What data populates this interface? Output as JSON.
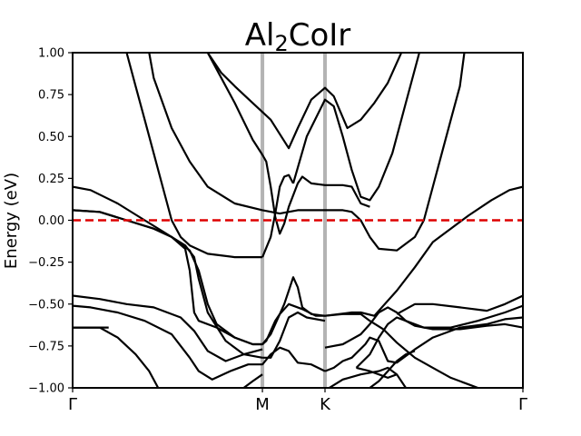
{
  "chart_data": {
    "type": "line",
    "title": {
      "base1": "Al",
      "sub": "2",
      "base2": "CoIr"
    },
    "xlabel": "",
    "ylabel": "Energy (eV)",
    "ylim": [
      -1.0,
      1.0
    ],
    "y_ticks": [
      1.0,
      0.75,
      0.5,
      0.25,
      0.0,
      -0.25,
      -0.5,
      -0.75,
      -1.0
    ],
    "y_tick_labels": [
      "1.00",
      "0.75",
      "0.50",
      "0.25",
      "0.00",
      "−0.25",
      "−0.50",
      "−0.75",
      "−1.00"
    ],
    "xlim": [
      0,
      1
    ],
    "kpath": [
      {
        "label": "Γ",
        "x": 0.0
      },
      {
        "label": "M",
        "x": 0.4215
      },
      {
        "label": "K",
        "x": 0.5605
      },
      {
        "label": "Γ",
        "x": 1.0
      }
    ],
    "fermi_level": 0.0,
    "colors": {
      "bands": "#000000",
      "fermi": "#dd0000",
      "kpath_lines": "#b3b3b3"
    },
    "series": [
      {
        "points": [
          [
            0.0,
            0.2
          ],
          [
            0.04,
            0.18
          ],
          [
            0.1,
            0.1
          ],
          [
            0.16,
            0.0
          ],
          [
            0.22,
            -0.1
          ],
          [
            0.26,
            -0.18
          ],
          [
            0.28,
            -0.3
          ],
          [
            0.3,
            -0.5
          ],
          [
            0.32,
            -0.62
          ],
          [
            0.36,
            -0.7
          ],
          [
            0.4,
            -0.74
          ],
          [
            0.4215,
            -0.74
          ],
          [
            0.44,
            -0.68
          ],
          [
            0.46,
            -0.56
          ],
          [
            0.48,
            -0.5
          ],
          [
            0.51,
            -0.53
          ],
          [
            0.54,
            -0.57
          ],
          [
            0.5605,
            -0.57
          ],
          [
            0.62,
            -0.55
          ],
          [
            0.64,
            -0.55
          ],
          [
            0.67,
            -0.57
          ],
          [
            0.72,
            -0.42
          ],
          [
            0.76,
            -0.28
          ],
          [
            0.8,
            -0.13
          ],
          [
            0.84,
            -0.05
          ],
          [
            0.88,
            0.03
          ],
          [
            0.93,
            0.12
          ],
          [
            0.97,
            0.18
          ],
          [
            1.0,
            0.2
          ]
        ]
      },
      {
        "points": [
          [
            0.0,
            0.06
          ],
          [
            0.06,
            0.05
          ],
          [
            0.12,
            0.0
          ],
          [
            0.18,
            -0.05
          ],
          [
            0.22,
            -0.1
          ],
          [
            0.25,
            -0.17
          ],
          [
            0.26,
            -0.3
          ],
          [
            0.27,
            -0.55
          ],
          [
            0.28,
            -0.6
          ],
          [
            0.32,
            -0.64
          ],
          [
            0.36,
            -0.7
          ],
          [
            0.4,
            -0.74
          ],
          [
            0.4215,
            -0.74
          ]
        ]
      },
      {
        "points": [
          [
            0.4215,
            -0.74
          ],
          [
            0.43,
            -0.72
          ],
          [
            0.44,
            -0.66
          ],
          [
            0.45,
            -0.6
          ],
          [
            0.46,
            -0.56
          ],
          [
            0.47,
            -0.5
          ],
          [
            0.48,
            -0.42
          ],
          [
            0.49,
            -0.34
          ],
          [
            0.5,
            -0.4
          ],
          [
            0.51,
            -0.52
          ],
          [
            0.53,
            -0.56
          ],
          [
            0.5605,
            -0.57
          ]
        ]
      },
      {
        "points": [
          [
            0.0,
            0.06
          ],
          [
            0.06,
            0.05
          ],
          [
            0.12,
            0.0
          ],
          [
            0.18,
            -0.05
          ],
          [
            0.22,
            -0.1
          ],
          [
            0.25,
            -0.15
          ],
          [
            0.27,
            -0.22
          ],
          [
            0.28,
            -0.35
          ],
          [
            0.3,
            -0.55
          ],
          [
            0.34,
            -0.72
          ],
          [
            0.38,
            -0.8
          ],
          [
            0.4215,
            -0.82
          ]
        ]
      },
      {
        "points": [
          [
            0.4215,
            -0.82
          ],
          [
            0.44,
            -0.82
          ],
          [
            0.46,
            -0.72
          ],
          [
            0.48,
            -0.58
          ],
          [
            0.5,
            -0.55
          ],
          [
            0.52,
            -0.58
          ],
          [
            0.5605,
            -0.6
          ]
        ]
      },
      {
        "points": [
          [
            0.0,
            -0.45
          ],
          [
            0.06,
            -0.47
          ],
          [
            0.12,
            -0.5
          ],
          [
            0.18,
            -0.52
          ],
          [
            0.24,
            -0.58
          ],
          [
            0.27,
            -0.66
          ],
          [
            0.3,
            -0.78
          ],
          [
            0.34,
            -0.84
          ],
          [
            0.38,
            -0.8
          ],
          [
            0.4215,
            -0.77
          ]
        ]
      },
      {
        "points": [
          [
            0.0,
            -0.51
          ],
          [
            0.04,
            -0.52
          ],
          [
            0.1,
            -0.55
          ],
          [
            0.16,
            -0.6
          ],
          [
            0.22,
            -0.68
          ],
          [
            0.26,
            -0.82
          ],
          [
            0.28,
            -0.9
          ],
          [
            0.31,
            -0.95
          ],
          [
            0.35,
            -0.9
          ],
          [
            0.39,
            -0.86
          ],
          [
            0.4215,
            -0.86
          ],
          [
            0.44,
            -0.8
          ],
          [
            0.46,
            -0.76
          ],
          [
            0.48,
            -0.78
          ],
          [
            0.5,
            -0.85
          ],
          [
            0.53,
            -0.86
          ],
          [
            0.5605,
            -0.9
          ]
        ]
      },
      {
        "points": [
          [
            0.0,
            -0.64
          ],
          [
            0.06,
            -0.64
          ],
          [
            0.1,
            -0.7
          ],
          [
            0.14,
            -0.8
          ],
          [
            0.17,
            -0.9
          ],
          [
            0.19,
            -1.0
          ]
        ]
      },
      {
        "points": [
          [
            0.4215,
            0.39
          ],
          [
            0.43,
            0.35
          ],
          [
            0.44,
            0.2
          ],
          [
            0.45,
            0.02
          ],
          [
            0.46,
            -0.08
          ],
          [
            0.47,
            -0.02
          ],
          [
            0.48,
            0.08
          ],
          [
            0.5,
            0.22
          ],
          [
            0.51,
            0.26
          ],
          [
            0.53,
            0.22
          ],
          [
            0.5605,
            0.21
          ],
          [
            0.6,
            0.21
          ],
          [
            0.62,
            0.2
          ],
          [
            0.64,
            0.1
          ],
          [
            0.66,
            0.08
          ]
        ]
      },
      {
        "points": [
          [
            0.4215,
            -0.22
          ],
          [
            0.4,
            -0.22
          ],
          [
            0.36,
            -0.22
          ],
          [
            0.3,
            -0.2
          ],
          [
            0.26,
            -0.15
          ],
          [
            0.24,
            -0.1
          ],
          [
            0.22,
            0.0
          ],
          [
            0.2,
            0.2
          ],
          [
            0.18,
            0.4
          ],
          [
            0.16,
            0.6
          ],
          [
            0.14,
            0.8
          ],
          [
            0.12,
            1.0
          ]
        ]
      },
      {
        "points": [
          [
            0.4215,
            -0.22
          ],
          [
            0.44,
            -0.1
          ],
          [
            0.45,
            0.04
          ],
          [
            0.46,
            0.2
          ],
          [
            0.47,
            0.26
          ],
          [
            0.48,
            0.27
          ],
          [
            0.49,
            0.22
          ]
        ]
      },
      {
        "points": [
          [
            0.17,
            1.0
          ],
          [
            0.18,
            0.85
          ],
          [
            0.2,
            0.7
          ],
          [
            0.22,
            0.55
          ],
          [
            0.26,
            0.35
          ],
          [
            0.3,
            0.2
          ],
          [
            0.36,
            0.1
          ],
          [
            0.4215,
            0.06
          ],
          [
            0.46,
            0.04
          ],
          [
            0.5,
            0.06
          ],
          [
            0.5605,
            0.06
          ],
          [
            0.6,
            0.06
          ],
          [
            0.62,
            0.05
          ],
          [
            0.64,
            0.0
          ],
          [
            0.66,
            -0.1
          ],
          [
            0.68,
            -0.17
          ],
          [
            0.72,
            -0.18
          ],
          [
            0.76,
            -0.1
          ],
          [
            0.78,
            0.0
          ],
          [
            0.8,
            0.2
          ],
          [
            0.82,
            0.4
          ],
          [
            0.84,
            0.6
          ],
          [
            0.86,
            0.8
          ],
          [
            0.87,
            1.0
          ]
        ]
      },
      {
        "points": [
          [
            0.3,
            1.0
          ],
          [
            0.33,
            0.85
          ],
          [
            0.36,
            0.7
          ],
          [
            0.4,
            0.48
          ],
          [
            0.4215,
            0.39
          ]
        ]
      },
      {
        "points": [
          [
            0.3,
            1.0
          ],
          [
            0.33,
            0.88
          ],
          [
            0.36,
            0.8
          ],
          [
            0.4,
            0.7
          ],
          [
            0.44,
            0.6
          ],
          [
            0.48,
            0.43
          ],
          [
            0.5,
            0.55
          ],
          [
            0.53,
            0.72
          ],
          [
            0.5605,
            0.79
          ],
          [
            0.58,
            0.74
          ],
          [
            0.61,
            0.55
          ],
          [
            0.64,
            0.6
          ],
          [
            0.67,
            0.7
          ],
          [
            0.7,
            0.82
          ],
          [
            0.73,
            1.0
          ]
        ]
      },
      {
        "points": [
          [
            0.49,
            0.22
          ],
          [
            0.52,
            0.5
          ],
          [
            0.5605,
            0.72
          ],
          [
            0.58,
            0.68
          ],
          [
            0.6,
            0.5
          ],
          [
            0.62,
            0.3
          ],
          [
            0.64,
            0.14
          ],
          [
            0.66,
            0.12
          ],
          [
            0.68,
            0.2
          ],
          [
            0.71,
            0.4
          ],
          [
            0.74,
            0.7
          ],
          [
            0.77,
            1.0
          ]
        ]
      },
      {
        "points": [
          [
            0.5605,
            -0.9
          ],
          [
            0.58,
            -0.88
          ],
          [
            0.6,
            -0.84
          ],
          [
            0.62,
            -0.82
          ],
          [
            0.65,
            -0.74
          ],
          [
            0.66,
            -0.7
          ],
          [
            0.68,
            -0.72
          ],
          [
            0.7,
            -0.84
          ],
          [
            0.72,
            -0.85
          ],
          [
            0.76,
            -0.77
          ],
          [
            0.8,
            -0.7
          ],
          [
            0.86,
            -0.64
          ],
          [
            0.92,
            -0.62
          ],
          [
            0.96,
            -0.59
          ],
          [
            1.0,
            -0.58
          ]
        ]
      },
      {
        "points": [
          [
            0.5605,
            -0.76
          ],
          [
            0.6,
            -0.74
          ],
          [
            0.64,
            -0.68
          ],
          [
            0.66,
            -0.62
          ],
          [
            0.68,
            -0.55
          ],
          [
            0.7,
            -0.52
          ],
          [
            0.72,
            -0.55
          ],
          [
            0.74,
            -0.6
          ],
          [
            0.76,
            -0.63
          ],
          [
            0.8,
            -0.65
          ],
          [
            0.86,
            -0.65
          ],
          [
            0.92,
            -0.63
          ],
          [
            0.96,
            -0.62
          ],
          [
            1.0,
            -0.64
          ]
        ]
      },
      {
        "points": [
          [
            0.5605,
            -0.57
          ],
          [
            0.6,
            -0.56
          ],
          [
            0.64,
            -0.56
          ],
          [
            0.66,
            -0.6
          ],
          [
            0.69,
            -0.65
          ],
          [
            0.72,
            -0.73
          ],
          [
            0.76,
            -0.82
          ],
          [
            0.8,
            -0.88
          ],
          [
            0.84,
            -0.94
          ],
          [
            0.88,
            -0.98
          ],
          [
            0.9,
            -1.0
          ]
        ]
      },
      {
        "points": [
          [
            0.57,
            -1.0
          ],
          [
            0.6,
            -0.95
          ],
          [
            0.64,
            -0.92
          ],
          [
            0.68,
            -0.9
          ],
          [
            0.7,
            -0.88
          ],
          [
            0.72,
            -0.92
          ],
          [
            0.74,
            -1.0
          ]
        ]
      },
      {
        "points": [
          [
            0.66,
            -1.0
          ],
          [
            0.68,
            -0.96
          ],
          [
            0.7,
            -0.9
          ],
          [
            0.72,
            -0.84
          ],
          [
            0.74,
            -0.8
          ],
          [
            0.76,
            -0.78
          ]
        ]
      },
      {
        "points": [
          [
            0.63,
            -0.88
          ],
          [
            0.66,
            -0.8
          ],
          [
            0.68,
            -0.7
          ],
          [
            0.7,
            -0.62
          ],
          [
            0.72,
            -0.58
          ],
          [
            0.74,
            -0.6
          ],
          [
            0.78,
            -0.64
          ],
          [
            0.84,
            -0.64
          ],
          [
            0.9,
            -0.6
          ],
          [
            0.96,
            -0.55
          ],
          [
            1.0,
            -0.51
          ]
        ]
      },
      {
        "points": [
          [
            0.63,
            -0.88
          ],
          [
            0.66,
            -0.9
          ],
          [
            0.68,
            -0.92
          ],
          [
            0.7,
            -0.94
          ],
          [
            0.72,
            -0.92
          ]
        ]
      },
      {
        "points": [
          [
            0.72,
            -0.56
          ],
          [
            0.76,
            -0.5
          ],
          [
            0.8,
            -0.5
          ],
          [
            0.86,
            -0.52
          ],
          [
            0.92,
            -0.54
          ],
          [
            0.96,
            -0.5
          ],
          [
            1.0,
            -0.45
          ]
        ]
      },
      {
        "points": [
          [
            0.4215,
            -0.92
          ],
          [
            0.4,
            -0.96
          ],
          [
            0.38,
            -1.0
          ]
        ]
      },
      {
        "points": [
          [
            0.0,
            -0.64
          ],
          [
            0.04,
            -0.64
          ],
          [
            0.08,
            -0.64
          ]
        ]
      }
    ]
  }
}
